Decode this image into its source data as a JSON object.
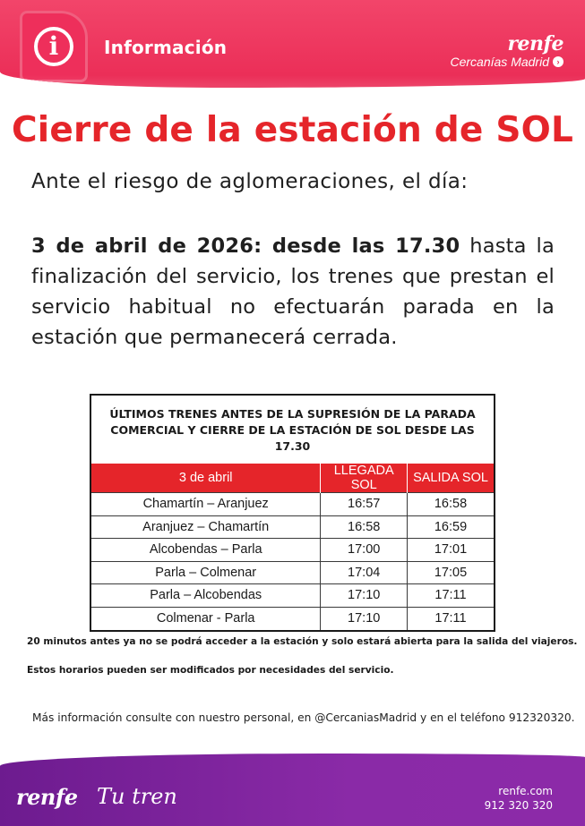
{
  "header": {
    "title": "Información",
    "brand": "renfe",
    "brand_sub": "Cercanías Madrid"
  },
  "main": {
    "title": "Cierre de la estación de SOL",
    "intro": "Ante el riesgo de aglomeraciones, el día:",
    "body_strong": "3 de abril de 2026: desde las 17.30",
    "body_rest": " hasta la finalización del servicio, los trenes que prestan el servicio habitual no efectuarán parada en la estación que permanecerá cerrada."
  },
  "schedule": {
    "heading_line1": "ÚLTIMOS TRENES ANTES DE LA SUPRESIÓN DE LA PARADA",
    "heading_line2": "COMERCIAL Y CIERRE DE LA ESTACIÓN DE SOL DESDE LAS 17.30",
    "columns": [
      "3 de abril",
      "LLEGADA SOL",
      "SALIDA SOL"
    ],
    "rows": [
      [
        "Chamartín – Aranjuez",
        "16:57",
        "16:58"
      ],
      [
        "Aranjuez – Chamartín",
        "16:58",
        "16:59"
      ],
      [
        "Alcobendas – Parla",
        "17:00",
        "17:01"
      ],
      [
        "Parla – Colmenar",
        "17:04",
        "17:05"
      ],
      [
        "Parla – Alcobendas",
        "17:10",
        "17:11"
      ],
      [
        "Colmenar - Parla",
        "17:10",
        "17:11"
      ]
    ]
  },
  "notes": {
    "note1": "20 minutos antes ya no se podrá acceder a la estación y solo estará abierta para la salida del viajeros.",
    "note2": "Estos horarios pueden ser modificados por necesidades del servicio.",
    "more_info": "Más información consulte con nuestro personal, en @CercaniasMadrid y en el teléfono 912320320."
  },
  "footer": {
    "logo": "renfe",
    "tagline": "Tu tren",
    "website": "renfe.com",
    "phone": "912 320 320"
  },
  "icons": {
    "info": "info-icon",
    "arrow": "arrow-right-circle-icon"
  },
  "colors": {
    "header": "#ea2b55",
    "title_red": "#e5252a",
    "footer_purple": "#7a229b"
  }
}
